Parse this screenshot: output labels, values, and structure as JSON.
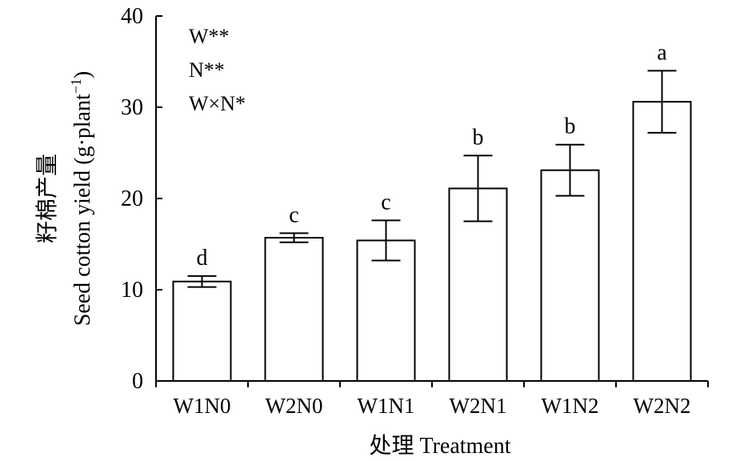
{
  "chart_data": {
    "type": "bar",
    "categories": [
      "W1N0",
      "W2N0",
      "W1N1",
      "W2N1",
      "W1N2",
      "W2N2"
    ],
    "values": [
      10.9,
      15.7,
      15.4,
      21.1,
      23.1,
      30.6
    ],
    "error": [
      0.6,
      0.5,
      2.2,
      3.6,
      2.8,
      3.4
    ],
    "significance": [
      "d",
      "c",
      "c",
      "b",
      "b",
      "a"
    ],
    "xlabel": "处理 Treatment",
    "ylabel_cn": "籽棉产量",
    "ylabel_en": "Seed cotton yield (g·plant",
    "ylabel_sup": "−1",
    "ylabel_close": ")",
    "ylim": [
      0,
      40
    ],
    "yticks": [
      "0",
      "10",
      "20",
      "30",
      "40"
    ],
    "annotations": [
      "W**",
      "N**",
      "W×N*"
    ],
    "grid": false,
    "legend": "none",
    "bar_fill": "#ffffff",
    "bar_stroke": "#000000"
  }
}
